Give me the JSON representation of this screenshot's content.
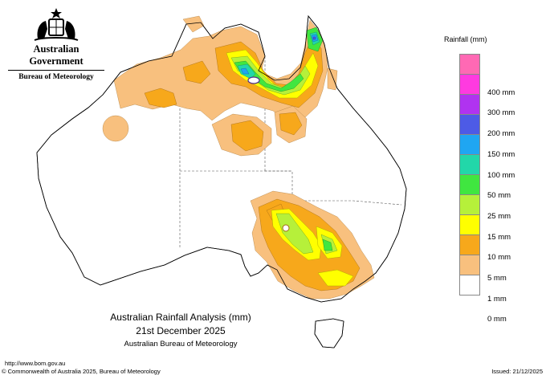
{
  "branding": {
    "government": "Australian Government",
    "bureau": "Bureau of Meteorology"
  },
  "legend": {
    "title": "Rainfall (mm)",
    "items": [
      {
        "label": "",
        "color": "#ff69b4"
      },
      {
        "label": "400 mm",
        "color": "#ff3ae0"
      },
      {
        "label": "300 mm",
        "color": "#b033f0"
      },
      {
        "label": "200 mm",
        "color": "#4d5be6"
      },
      {
        "label": "150 mm",
        "color": "#1fa6f2"
      },
      {
        "label": "100 mm",
        "color": "#22d7a9"
      },
      {
        "label": "50 mm",
        "color": "#40e640"
      },
      {
        "label": "25 mm",
        "color": "#b6f03a"
      },
      {
        "label": "15 mm",
        "color": "#ffff00"
      },
      {
        "label": "10 mm",
        "color": "#f7a81b"
      },
      {
        "label": "5 mm",
        "color": "#f8c07e"
      },
      {
        "label": "1 mm",
        "color": "#ffffff"
      },
      {
        "label": "0 mm",
        "color": ""
      }
    ]
  },
  "caption": {
    "title": "Australian Rainfall Analysis (mm)",
    "date": "21st December 2025",
    "organisation": "Australian Bureau of Meteorology"
  },
  "footer": {
    "url": "http://www.bom.gov.au",
    "copyright": "© Commonwealth of Australia 2025, Bureau of Meteorology",
    "issued": "Issued: 21/12/2025"
  }
}
